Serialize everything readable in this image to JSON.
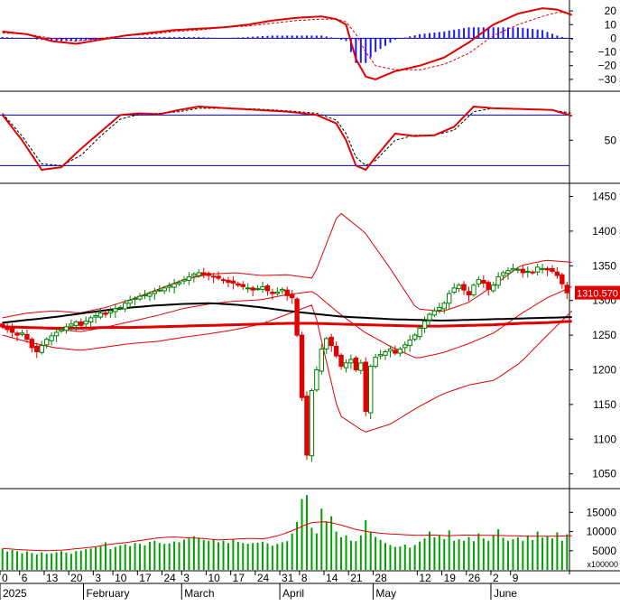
{
  "chart_data": [
    {
      "panel": "macd",
      "type": "line",
      "y_ticks": [
        "20",
        "10",
        "0",
        "−10",
        "−20",
        "−30"
      ],
      "y_tick_values": [
        20,
        10,
        0,
        -10,
        -20,
        -30
      ],
      "ylim": [
        -38,
        28
      ],
      "colors": {
        "macd": "#e00000",
        "signal": "#e00000",
        "histogram": "#1a1aff",
        "zero": "#0000c0"
      },
      "x_index": [
        0,
        5,
        10,
        15,
        20,
        25,
        30,
        35,
        40,
        45,
        50,
        55,
        60,
        65,
        68,
        70,
        72,
        74,
        76,
        80,
        85,
        90,
        95,
        100,
        105,
        110,
        113,
        116
      ],
      "macd": [
        5,
        3,
        -2,
        -4,
        -1,
        2,
        4,
        6,
        7,
        8,
        10,
        13,
        15,
        16,
        14,
        10,
        -15,
        -28,
        -30,
        -24,
        -20,
        -14,
        -3,
        10,
        18,
        22,
        21,
        17
      ],
      "signal": [
        4,
        3,
        0,
        -2,
        0,
        2,
        3,
        5,
        6,
        8,
        9,
        11,
        13,
        14,
        14,
        12,
        3,
        -10,
        -20,
        -23,
        -23,
        -19,
        -11,
        2,
        10,
        16,
        19,
        18
      ],
      "histogram": [
        1,
        0,
        -2,
        -2,
        -1,
        0,
        1,
        1,
        1,
        0,
        1,
        2,
        2,
        2,
        0,
        -2,
        -18,
        -18,
        -10,
        -1,
        3,
        5,
        8,
        8,
        8,
        6,
        2,
        -1
      ]
    },
    {
      "panel": "stochastic",
      "type": "line",
      "y_ticks": [
        "50"
      ],
      "y_tick_values": [
        50
      ],
      "ylim": [
        0,
        105
      ],
      "levels": [
        80,
        20
      ],
      "colors": {
        "k": "#e00000",
        "d": "#000000",
        "levels": "#0000c0"
      },
      "x_index": [
        0,
        4,
        8,
        12,
        16,
        20,
        24,
        28,
        32,
        36,
        40,
        46,
        52,
        58,
        64,
        68,
        70,
        72,
        74,
        76,
        80,
        84,
        88,
        92,
        96,
        100,
        106,
        112,
        116
      ],
      "k": [
        80,
        50,
        15,
        18,
        40,
        60,
        80,
        82,
        81,
        86,
        90,
        88,
        86,
        84,
        80,
        70,
        50,
        20,
        15,
        30,
        58,
        55,
        56,
        66,
        90,
        88,
        87,
        86,
        79
      ],
      "d": [
        82,
        55,
        22,
        20,
        32,
        55,
        75,
        81,
        82,
        84,
        88,
        88,
        87,
        85,
        82,
        74,
        58,
        30,
        20,
        26,
        50,
        56,
        56,
        62,
        84,
        88,
        87,
        86,
        82
      ]
    },
    {
      "panel": "price",
      "type": "candlestick",
      "y_ticks": [
        "1450",
        "1400",
        "1350",
        "1300",
        "1250",
        "1200",
        "1150",
        "1100",
        "1050"
      ],
      "y_tick_values": [
        1450,
        1400,
        1350,
        1300,
        1250,
        1200,
        1150,
        1100,
        1050
      ],
      "ylim": [
        1030,
        1465
      ],
      "last_price_label": "1310.570",
      "last_price": 1310.57,
      "colors": {
        "up": "#008000",
        "down": "#e00000",
        "bollinger": "#e00000",
        "ma_long": "#e00000",
        "ma_mid": "#000000"
      },
      "candles_close": [
        1262,
        1258,
        1254,
        1250,
        1253,
        1244,
        1232,
        1226,
        1235,
        1244,
        1249,
        1254,
        1258,
        1262,
        1266,
        1269,
        1264,
        1270,
        1275,
        1278,
        1282,
        1280,
        1285,
        1288,
        1290,
        1296,
        1300,
        1303,
        1306,
        1308,
        1310,
        1313,
        1315,
        1318,
        1321,
        1324,
        1326,
        1330,
        1334,
        1338,
        1340,
        1337,
        1336,
        1334,
        1332,
        1329,
        1326,
        1325,
        1322,
        1320,
        1318,
        1315,
        1317,
        1320,
        1314,
        1310,
        1312,
        1316,
        1307,
        1304,
        1250,
        1160,
        1077,
        1170,
        1200,
        1230,
        1245,
        1235,
        1220,
        1205,
        1210,
        1215,
        1200,
        1210,
        1140,
        1205,
        1218,
        1222,
        1226,
        1230,
        1224,
        1230,
        1236,
        1243,
        1250,
        1260,
        1270,
        1280,
        1285,
        1290,
        1296,
        1310,
        1318,
        1322,
        1315,
        1308,
        1322,
        1330,
        1325,
        1316,
        1322,
        1334,
        1340,
        1343,
        1346,
        1345,
        1340,
        1342,
        1340,
        1348,
        1346,
        1344,
        1342,
        1336,
        1324,
        1311
      ],
      "ma_mid": [
        1268,
        1272,
        1276,
        1281,
        1286,
        1290,
        1293,
        1295,
        1296,
        1294,
        1290,
        1285,
        1281,
        1277,
        1275,
        1273,
        1272,
        1271,
        1272,
        1273,
        1274,
        1275,
        1276
      ],
      "ma_long": [
        1262,
        1261,
        1260,
        1260,
        1261,
        1261,
        1262,
        1263,
        1264,
        1265,
        1266,
        1267,
        1267,
        1266,
        1265,
        1264,
        1263,
        1263,
        1264,
        1265,
        1267,
        1268,
        1270
      ],
      "bb_upper": [
        1275,
        1282,
        1285,
        1282,
        1290,
        1302,
        1316,
        1330,
        1338,
        1340,
        1336,
        1337,
        1332,
        1428,
        1398,
        1345,
        1288,
        1284,
        1297,
        1322,
        1350,
        1358,
        1355
      ],
      "bb_lower": [
        1250,
        1240,
        1232,
        1228,
        1233,
        1238,
        1241,
        1247,
        1252,
        1258,
        1266,
        1280,
        1294,
        1135,
        1110,
        1122,
        1145,
        1165,
        1178,
        1185,
        1210,
        1248,
        1285
      ]
    },
    {
      "panel": "volume",
      "type": "bar",
      "y_ticks": [
        "15000",
        "10000",
        "5000"
      ],
      "y_tick_values": [
        15000,
        10000,
        5000
      ],
      "unit_label": "x100000",
      "ylim": [
        0,
        20500
      ],
      "colors": {
        "bars": "#00a000",
        "average": "#e00000"
      },
      "values": [
        5500,
        4800,
        5200,
        4900,
        4300,
        4800,
        4400,
        4000,
        4600,
        4200,
        4300,
        4600,
        4900,
        4500,
        4200,
        4900,
        5000,
        5400,
        5600,
        5900,
        6100,
        7200,
        5400,
        6000,
        6400,
        6700,
        6200,
        7000,
        6800,
        6400,
        7300,
        7600,
        7000,
        6800,
        6900,
        7400,
        7200,
        7900,
        8200,
        8800,
        8400,
        7800,
        7600,
        8000,
        7200,
        7600,
        7000,
        7900,
        7300,
        7000,
        6800,
        7000,
        7100,
        7300,
        6900,
        6300,
        6800,
        7200,
        7500,
        9500,
        12500,
        18500,
        19500,
        11000,
        9500,
        16000,
        12500,
        14000,
        10000,
        8500,
        9000,
        7600,
        7500,
        9000,
        13000,
        10000,
        8600,
        7800,
        7000,
        6500,
        6000,
        6100,
        6600,
        5800,
        6500,
        7400,
        8200,
        10000,
        8500,
        9000,
        8000,
        10300,
        7600,
        8000,
        7600,
        8600,
        7500,
        9500,
        8200,
        7600,
        9000,
        10600,
        8400,
        7600,
        8000,
        8500,
        7600,
        9000,
        7800,
        10000,
        8400,
        8800,
        8200,
        9800,
        7600,
        9300
      ],
      "average": [
        5600,
        5300,
        5100,
        5000,
        5200,
        5600,
        6000,
        6700,
        7100,
        7700,
        8300,
        8600,
        8400,
        8200,
        7800,
        8000,
        8200,
        8100,
        9000,
        10500,
        12300,
        12600,
        11700,
        10500,
        9800,
        9400,
        9200,
        9000,
        9100,
        8900,
        9100,
        9000,
        9000,
        8900,
        8800,
        8800,
        8800,
        8900
      ]
    }
  ],
  "x_axis": {
    "day_labels": [
      "0",
      "6",
      "13",
      "20",
      "3",
      "10",
      "17",
      "24",
      "3",
      "10",
      "17",
      "24",
      "31",
      "8",
      "14",
      "21",
      "28",
      "12",
      "19",
      "26",
      "2",
      "9"
    ],
    "month_labels": [
      "2025",
      "February",
      "March",
      "April",
      "May",
      "June"
    ]
  }
}
